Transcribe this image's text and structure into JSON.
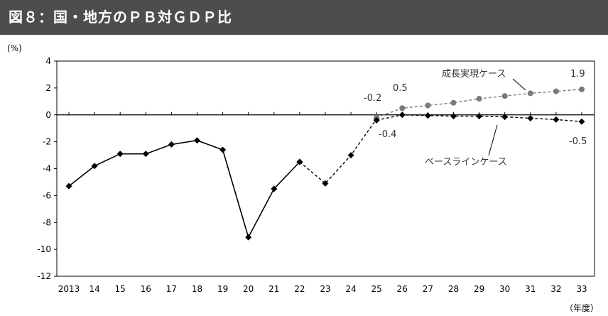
{
  "title": "図８：国・地方のＰＢ対ＧＤＰ比",
  "chart_data": {
    "type": "line",
    "ylabel": "(%)",
    "xlabel": "（年度）",
    "ylim": [
      -12,
      4
    ],
    "yticks": [
      4,
      2,
      0,
      -2,
      -4,
      -6,
      -8,
      -10,
      -12
    ],
    "categories": [
      "2013",
      "14",
      "15",
      "16",
      "17",
      "18",
      "19",
      "20",
      "21",
      "22",
      "23",
      "24",
      "25",
      "26",
      "27",
      "28",
      "29",
      "30",
      "31",
      "32",
      "33"
    ],
    "series": [
      {
        "name": "",
        "style": "solid",
        "color": "#000000",
        "marker": "diamond",
        "x": [
          "2013",
          "14",
          "15",
          "16",
          "17",
          "18",
          "19",
          "20",
          "21",
          "22"
        ],
        "values": [
          -5.3,
          -3.8,
          -2.9,
          -2.9,
          -2.2,
          -1.9,
          -2.6,
          -9.1,
          -5.5,
          -3.5
        ]
      },
      {
        "name": "",
        "style": "dashed",
        "color": "#000000",
        "marker": "diamond",
        "x": [
          "22",
          "23",
          "24",
          "25"
        ],
        "values": [
          -3.5,
          -5.1,
          -3.0,
          -0.3
        ]
      },
      {
        "name": "成長実現ケース",
        "style": "dashed",
        "color": "#7a7a7a",
        "marker": "circle",
        "x": [
          "25",
          "26",
          "27",
          "28",
          "29",
          "30",
          "31",
          "32",
          "33"
        ],
        "values": [
          -0.2,
          0.5,
          0.7,
          0.9,
          1.2,
          1.4,
          1.6,
          1.75,
          1.9
        ]
      },
      {
        "name": "ベースラインケース",
        "style": "dashed",
        "color": "#000000",
        "marker": "diamond",
        "x": [
          "25",
          "26",
          "27",
          "28",
          "29",
          "30",
          "31",
          "32",
          "33"
        ],
        "values": [
          -0.4,
          0.0,
          -0.05,
          -0.1,
          -0.1,
          -0.15,
          -0.25,
          -0.35,
          -0.5
        ]
      }
    ],
    "annotations": [
      "-0.2",
      "0.5",
      "-0.4",
      "1.9",
      "-0.5"
    ],
    "grid": false
  }
}
